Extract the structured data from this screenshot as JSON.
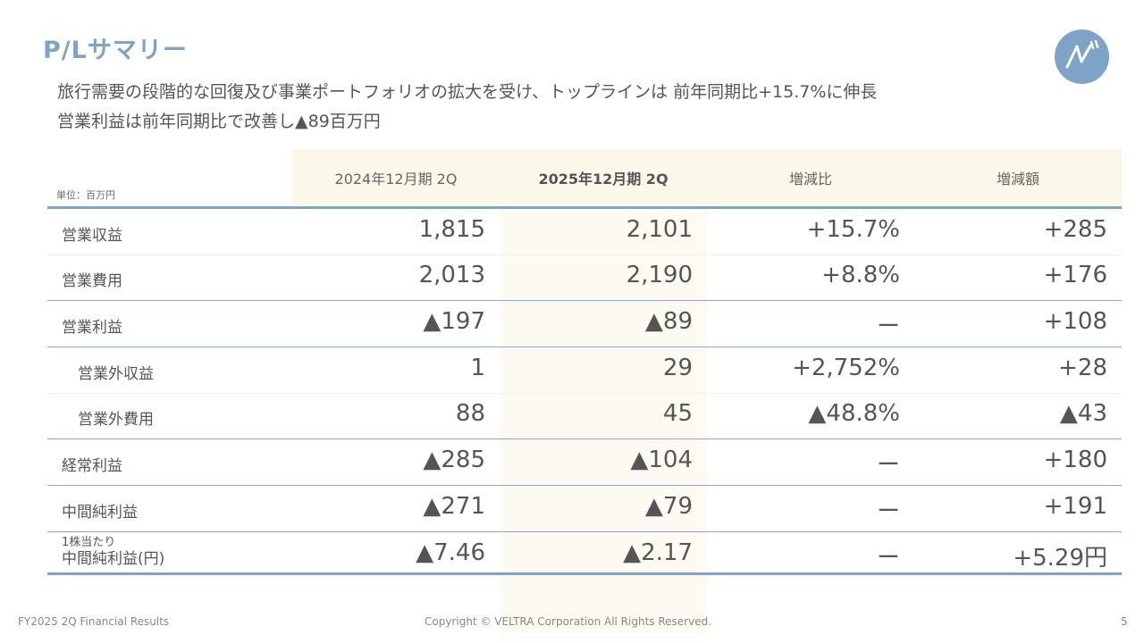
{
  "title": "P/Lサマリー",
  "subtitle_line1": "旅行需要の段階的な回復及び事業ポートフォリオの拡大を受け、トップラインは 前年同期比+15.7%に伸長",
  "subtitle_line2": "営業利益は前年同期比で改善し▲89百万円",
  "table": {
    "unit": "単位：百万円",
    "headers": [
      "2024年12月期 2Q",
      "2025年12月期 2Q",
      "増減比",
      "増減額"
    ],
    "rows": [
      {
        "label": "営業収益",
        "values": [
          "1,815",
          "2,101",
          "+15.7%",
          "+285"
        ]
      },
      {
        "label": "営業費用",
        "values": [
          "2,013",
          "2,190",
          "+8.8%",
          "+176"
        ]
      },
      {
        "label": "営業利益",
        "values": [
          "▲197",
          "▲89",
          "ー",
          "+108"
        ]
      },
      {
        "label": "営業外収益",
        "values": [
          "1",
          "29",
          "+2,752%",
          "+28"
        ]
      },
      {
        "label": "営業外費用",
        "values": [
          "88",
          "45",
          "▲48.8%",
          "▲43"
        ]
      },
      {
        "label": "経常利益",
        "values": [
          "▲285",
          "▲104",
          "ー",
          "+180"
        ]
      },
      {
        "label": "中間純利益",
        "values": [
          "▲271",
          "▲79",
          "ー",
          "+191"
        ]
      },
      {
        "label_small": "1株当たり",
        "label": "中間純利益(円)",
        "values": [
          "▲7.46",
          "▲2.17",
          "ー",
          "+5.29円"
        ]
      }
    ]
  },
  "footer": {
    "left": "FY2025 2Q Financial Results",
    "center": "Copyright © VELTRA Corporation All Rights Reserved.",
    "page": "5"
  },
  "colors": {
    "accent": "#7fa3c6",
    "header_bg": "#fcf8e9",
    "highlight_col": "#fdfbf1"
  },
  "logo_icon": "veltra-logo-icon"
}
